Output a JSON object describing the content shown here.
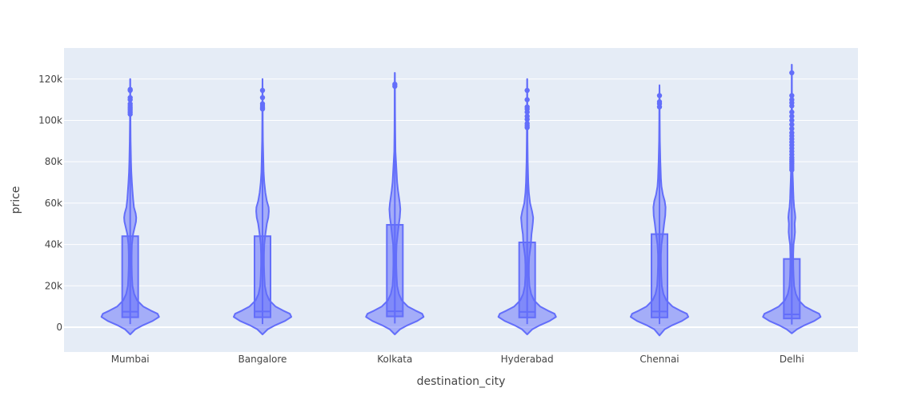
{
  "chart_data": {
    "type": "violin",
    "xlabel": "destination_city",
    "ylabel": "price",
    "ylim": [
      -12000,
      135000
    ],
    "yticks": [
      {
        "value": 0,
        "label": "0"
      },
      {
        "value": 20000,
        "label": "20k"
      },
      {
        "value": 40000,
        "label": "40k"
      },
      {
        "value": 60000,
        "label": "60k"
      },
      {
        "value": 80000,
        "label": "80k"
      },
      {
        "value": 100000,
        "label": "100k"
      },
      {
        "value": 120000,
        "label": "120k"
      }
    ],
    "grid": true,
    "colors": {
      "plot_bg": "#E5ECF6",
      "grid": "#ffffff",
      "line": "#636EFA",
      "fill": "rgba(99,110,250,0.5)",
      "box": "rgba(99,110,250,0.55)"
    },
    "categories": [
      "Mumbai",
      "Bangalore",
      "Kolkata",
      "Hyderabad",
      "Chennai",
      "Delhi"
    ],
    "violins": [
      {
        "name": "Mumbai",
        "q1": 4800,
        "median": 7500,
        "q3": 44000,
        "fence_low": 1500,
        "fence_high": 120000,
        "kde_min": -3500,
        "outliers": [
          103000,
          104000,
          105000,
          106000,
          107000,
          108000,
          110000,
          111000,
          114500,
          115000
        ],
        "profile": [
          [
            -3500,
            0
          ],
          [
            -1000,
            0.18
          ],
          [
            1000,
            0.45
          ],
          [
            3000,
            0.78
          ],
          [
            5000,
            1.0
          ],
          [
            6500,
            0.95
          ],
          [
            8000,
            0.72
          ],
          [
            10000,
            0.45
          ],
          [
            13000,
            0.24
          ],
          [
            16000,
            0.14
          ],
          [
            20000,
            0.08
          ],
          [
            25000,
            0.06
          ],
          [
            30000,
            0.05
          ],
          [
            35000,
            0.05
          ],
          [
            40000,
            0.06
          ],
          [
            45000,
            0.1
          ],
          [
            48000,
            0.15
          ],
          [
            51000,
            0.2
          ],
          [
            53000,
            0.21
          ],
          [
            55000,
            0.19
          ],
          [
            58000,
            0.13
          ],
          [
            62000,
            0.1
          ],
          [
            66000,
            0.08
          ],
          [
            70000,
            0.06
          ],
          [
            75000,
            0.04
          ],
          [
            80000,
            0.03
          ],
          [
            90000,
            0.015
          ],
          [
            100000,
            0.008
          ],
          [
            110000,
            0.006
          ],
          [
            120000,
            0
          ]
        ]
      },
      {
        "name": "Bangalore",
        "q1": 4800,
        "median": 7600,
        "q3": 44000,
        "fence_low": 1500,
        "fence_high": 120000,
        "kde_min": -3500,
        "outliers": [
          105500,
          106000,
          107000,
          108000,
          111000,
          114500
        ],
        "profile": [
          [
            -3500,
            0
          ],
          [
            -1000,
            0.18
          ],
          [
            1000,
            0.45
          ],
          [
            3000,
            0.78
          ],
          [
            5000,
            1.0
          ],
          [
            6500,
            0.95
          ],
          [
            8000,
            0.72
          ],
          [
            10000,
            0.45
          ],
          [
            13000,
            0.24
          ],
          [
            16000,
            0.14
          ],
          [
            20000,
            0.08
          ],
          [
            25000,
            0.06
          ],
          [
            30000,
            0.05
          ],
          [
            35000,
            0.05
          ],
          [
            40000,
            0.06
          ],
          [
            45000,
            0.1
          ],
          [
            50000,
            0.15
          ],
          [
            53000,
            0.2
          ],
          [
            56000,
            0.22
          ],
          [
            58000,
            0.21
          ],
          [
            61000,
            0.15
          ],
          [
            65000,
            0.1
          ],
          [
            70000,
            0.06
          ],
          [
            75000,
            0.04
          ],
          [
            80000,
            0.03
          ],
          [
            90000,
            0.015
          ],
          [
            100000,
            0.008
          ],
          [
            110000,
            0.006
          ],
          [
            120000,
            0
          ]
        ]
      },
      {
        "name": "Kolkata",
        "q1": 5200,
        "median": 7700,
        "q3": 49500,
        "fence_low": 1800,
        "fence_high": 123000,
        "kde_min": -3500,
        "outliers": [
          116500,
          117500
        ],
        "profile": [
          [
            -3500,
            0
          ],
          [
            -1000,
            0.18
          ],
          [
            1000,
            0.45
          ],
          [
            3000,
            0.78
          ],
          [
            5000,
            1.0
          ],
          [
            6500,
            0.95
          ],
          [
            8000,
            0.72
          ],
          [
            10000,
            0.45
          ],
          [
            13000,
            0.24
          ],
          [
            16000,
            0.14
          ],
          [
            20000,
            0.08
          ],
          [
            25000,
            0.06
          ],
          [
            30000,
            0.05
          ],
          [
            35000,
            0.05
          ],
          [
            40000,
            0.06
          ],
          [
            45000,
            0.1
          ],
          [
            50000,
            0.14
          ],
          [
            53000,
            0.17
          ],
          [
            57000,
            0.19
          ],
          [
            60000,
            0.17
          ],
          [
            63000,
            0.14
          ],
          [
            66000,
            0.11
          ],
          [
            70000,
            0.08
          ],
          [
            75000,
            0.06
          ],
          [
            80000,
            0.04
          ],
          [
            85000,
            0.02
          ],
          [
            95000,
            0.012
          ],
          [
            105000,
            0.008
          ],
          [
            115000,
            0.006
          ],
          [
            123000,
            0
          ]
        ]
      },
      {
        "name": "Hyderabad",
        "q1": 4700,
        "median": 7400,
        "q3": 41000,
        "fence_low": 1500,
        "fence_high": 120000,
        "kde_min": -3500,
        "outliers": [
          96500,
          97500,
          98500,
          100500,
          102000,
          104000,
          105500,
          106500,
          110000,
          114500
        ],
        "profile": [
          [
            -3500,
            0
          ],
          [
            -1000,
            0.18
          ],
          [
            1000,
            0.45
          ],
          [
            3000,
            0.78
          ],
          [
            5000,
            1.0
          ],
          [
            6500,
            0.95
          ],
          [
            8000,
            0.72
          ],
          [
            10000,
            0.45
          ],
          [
            13000,
            0.24
          ],
          [
            16000,
            0.14
          ],
          [
            20000,
            0.08
          ],
          [
            25000,
            0.06
          ],
          [
            30000,
            0.06
          ],
          [
            34000,
            0.07
          ],
          [
            37000,
            0.1
          ],
          [
            40000,
            0.13
          ],
          [
            45000,
            0.15
          ],
          [
            48000,
            0.18
          ],
          [
            51000,
            0.2
          ],
          [
            53000,
            0.21
          ],
          [
            56000,
            0.17
          ],
          [
            60000,
            0.1
          ],
          [
            65000,
            0.06
          ],
          [
            70000,
            0.04
          ],
          [
            80000,
            0.02
          ],
          [
            90000,
            0.012
          ],
          [
            100000,
            0.008
          ],
          [
            110000,
            0.006
          ],
          [
            120000,
            0
          ]
        ]
      },
      {
        "name": "Chennai",
        "q1": 4700,
        "median": 7600,
        "q3": 45000,
        "fence_low": 1500,
        "fence_high": 117000,
        "kde_min": -4000,
        "outliers": [
          106500,
          108000,
          109000,
          112000
        ],
        "profile": [
          [
            -4000,
            0
          ],
          [
            -1000,
            0.18
          ],
          [
            1000,
            0.45
          ],
          [
            3000,
            0.78
          ],
          [
            5000,
            1.0
          ],
          [
            6500,
            0.95
          ],
          [
            8000,
            0.72
          ],
          [
            10000,
            0.45
          ],
          [
            13000,
            0.24
          ],
          [
            16000,
            0.14
          ],
          [
            20000,
            0.08
          ],
          [
            25000,
            0.06
          ],
          [
            30000,
            0.05
          ],
          [
            35000,
            0.05
          ],
          [
            40000,
            0.07
          ],
          [
            45000,
            0.12
          ],
          [
            50000,
            0.16
          ],
          [
            54000,
            0.2
          ],
          [
            58000,
            0.21
          ],
          [
            61000,
            0.18
          ],
          [
            64000,
            0.12
          ],
          [
            68000,
            0.07
          ],
          [
            72000,
            0.05
          ],
          [
            80000,
            0.03
          ],
          [
            90000,
            0.015
          ],
          [
            100000,
            0.008
          ],
          [
            110000,
            0.005
          ],
          [
            117000,
            0
          ]
        ]
      },
      {
        "name": "Delhi",
        "q1": 4200,
        "median": 6200,
        "q3": 33000,
        "fence_low": 1300,
        "fence_high": 127000,
        "kde_min": -3000,
        "outliers": [
          76000,
          77000,
          78000,
          79000,
          80000,
          81000,
          82000,
          83500,
          85000,
          86500,
          88000,
          89500,
          91000,
          92500,
          94000,
          96000,
          98000,
          100000,
          102000,
          104000,
          107000,
          108500,
          110000,
          112000,
          123000
        ],
        "profile": [
          [
            -3000,
            0
          ],
          [
            -1000,
            0.18
          ],
          [
            1000,
            0.45
          ],
          [
            3000,
            0.78
          ],
          [
            5000,
            1.0
          ],
          [
            6500,
            0.95
          ],
          [
            8000,
            0.72
          ],
          [
            10000,
            0.45
          ],
          [
            13000,
            0.24
          ],
          [
            16000,
            0.14
          ],
          [
            20000,
            0.08
          ],
          [
            25000,
            0.06
          ],
          [
            30000,
            0.05
          ],
          [
            35000,
            0.05
          ],
          [
            40000,
            0.06
          ],
          [
            43000,
            0.09
          ],
          [
            46000,
            0.11
          ],
          [
            50000,
            0.1
          ],
          [
            53000,
            0.12
          ],
          [
            55000,
            0.11
          ],
          [
            58000,
            0.08
          ],
          [
            62000,
            0.06
          ],
          [
            66000,
            0.05
          ],
          [
            70000,
            0.04
          ],
          [
            76000,
            0.025
          ],
          [
            85000,
            0.015
          ],
          [
            95000,
            0.01
          ],
          [
            105000,
            0.008
          ],
          [
            115000,
            0.005
          ],
          [
            127000,
            0
          ]
        ]
      }
    ]
  }
}
